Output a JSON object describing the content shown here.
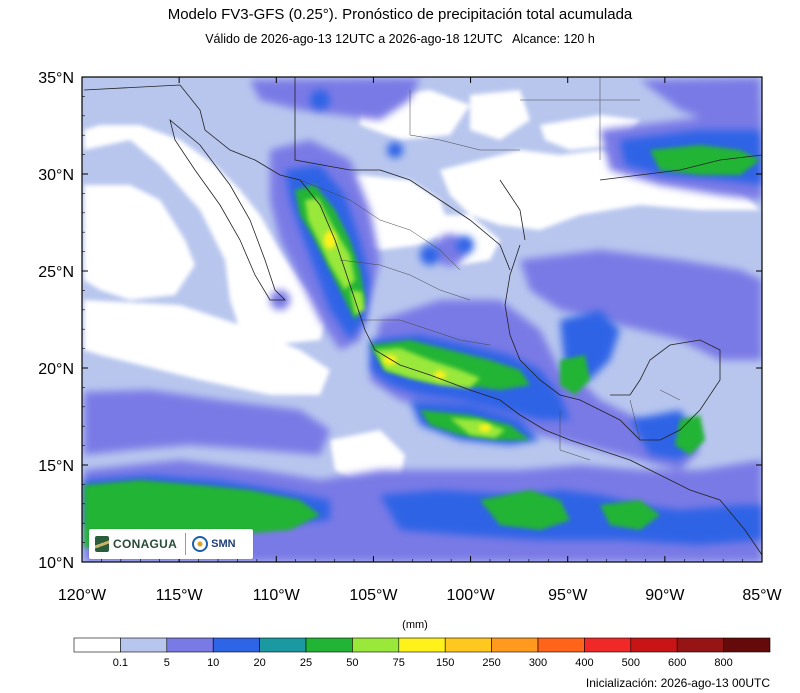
{
  "header": {
    "title": "Modelo FV3-GFS (0.25°). Pronóstico de precipitación total acumulada",
    "subtitle_valid": "Válido de 2026-ago-13 12UTC a 2026-ago-18 12UTC",
    "subtitle_range": "Alcance: 120 h"
  },
  "axes": {
    "lon_labels": [
      "120°W",
      "115°W",
      "110°W",
      "105°W",
      "100°W",
      "95°W",
      "90°W",
      "85°W"
    ],
    "lat_labels": [
      "35°N",
      "30°N",
      "25°N",
      "20°N",
      "15°N",
      "10°N"
    ],
    "lon_range": [
      -120,
      -85
    ],
    "lat_range": [
      10,
      35
    ]
  },
  "colorbar": {
    "unit": "(mm)",
    "levels": [
      "0.1",
      "5",
      "10",
      "20",
      "25",
      "50",
      "75",
      "150",
      "250",
      "300",
      "400",
      "500",
      "600",
      "800"
    ],
    "colors": [
      "#ffffff",
      "#b8c6ee",
      "#7a7ae6",
      "#2e64e6",
      "#1a9aa0",
      "#22b435",
      "#9ae83a",
      "#fff21a",
      "#ffc81e",
      "#ff9a1e",
      "#ff6419",
      "#f02828",
      "#c81414",
      "#961414",
      "#640a0a"
    ]
  },
  "logos": {
    "conagua": "CONAGUA",
    "smn": "SMN"
  },
  "footer": {
    "init": "Inicialización: 2026-ago-13 00UTC"
  }
}
